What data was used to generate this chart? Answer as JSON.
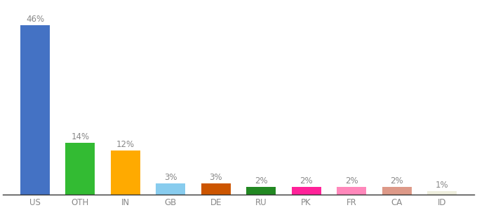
{
  "categories": [
    "US",
    "OTH",
    "IN",
    "GB",
    "DE",
    "RU",
    "PK",
    "FR",
    "CA",
    "ID"
  ],
  "values": [
    46,
    14,
    12,
    3,
    3,
    2,
    2,
    2,
    2,
    1
  ],
  "bar_colors": [
    "#4472c4",
    "#33bb33",
    "#ffaa00",
    "#88ccee",
    "#cc5500",
    "#228822",
    "#ff2299",
    "#ff88bb",
    "#dd9988",
    "#eeeedd"
  ],
  "labels": [
    "46%",
    "14%",
    "12%",
    "3%",
    "3%",
    "2%",
    "2%",
    "2%",
    "2%",
    "1%"
  ],
  "background_color": "#ffffff",
  "ylim": [
    0,
    52
  ],
  "label_fontsize": 8.5,
  "tick_fontsize": 8.5,
  "label_color": "#888888"
}
